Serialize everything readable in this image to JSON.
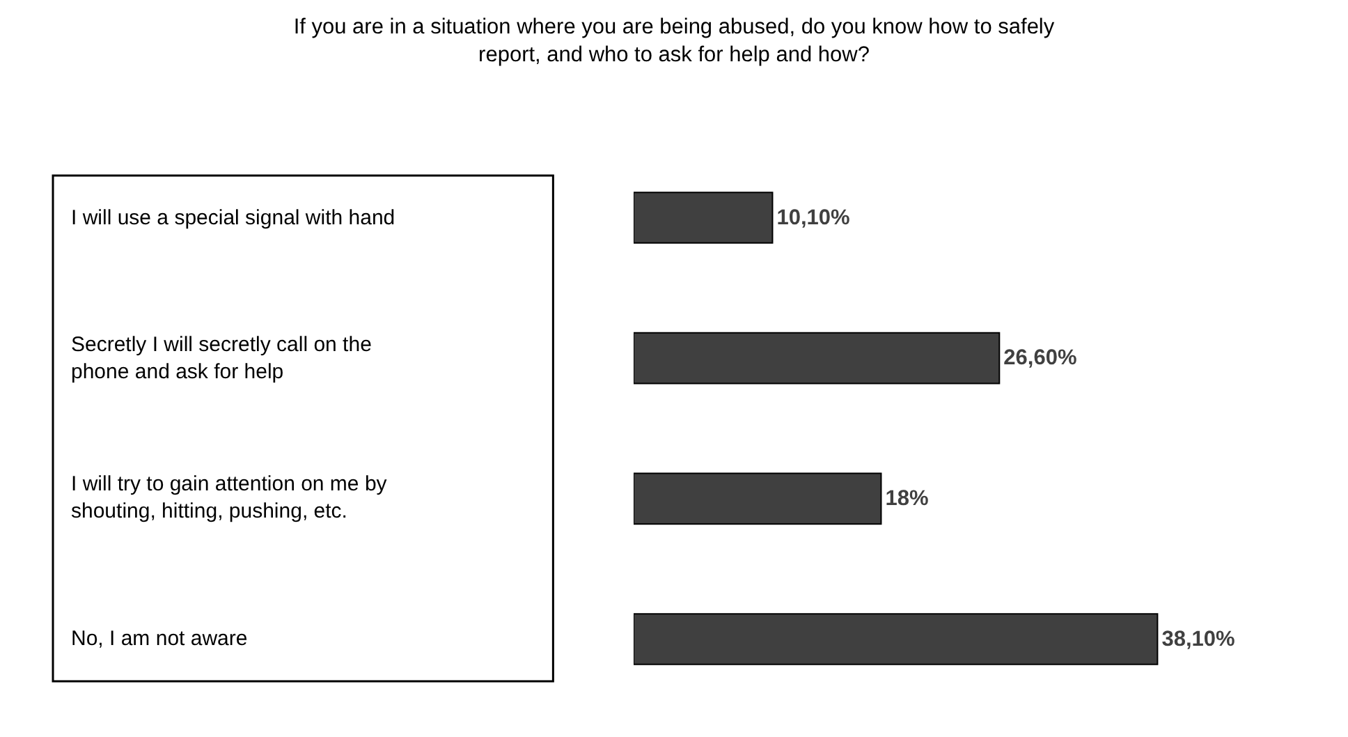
{
  "chart_data": {
    "type": "bar",
    "orientation": "horizontal",
    "title": "If you are in a situation where you are being abused, do you know how to safely report, and who to ask for help and how?",
    "categories": [
      "I will use a special signal with hand",
      "Secretly I will secretly call on the phone and ask for help",
      "I will try to gain attention on me by shouting, hitting, pushing, etc.",
      "No, I am not aware"
    ],
    "values": [
      10.1,
      26.6,
      18,
      38.1
    ],
    "value_labels": [
      "10,10%",
      "26,60%",
      "18%",
      "38,10%"
    ],
    "color": "#404040",
    "tick_labels": false
  }
}
